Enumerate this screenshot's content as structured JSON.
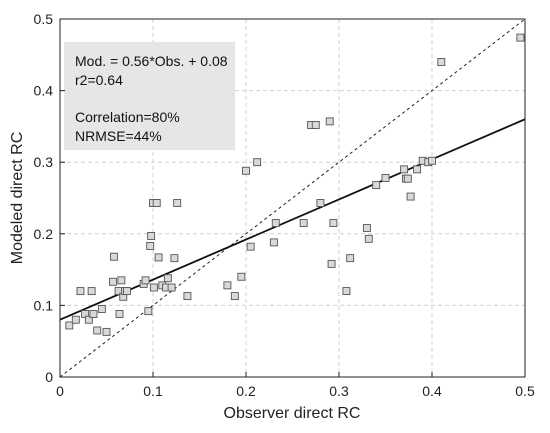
{
  "chart_data": {
    "type": "scatter",
    "title": "",
    "xlabel": "Observer direct RC",
    "ylabel": "Modeled direct RC",
    "xlim": [
      0,
      0.5
    ],
    "ylim": [
      0,
      0.5
    ],
    "xticks": [
      "0",
      "0.1",
      "0.2",
      "0.3",
      "0.4",
      "0.5"
    ],
    "yticks": [
      "0",
      "0.1",
      "0.2",
      "0.3",
      "0.4",
      "0.5"
    ],
    "grid": true,
    "annotation": {
      "line1": "Mod. = 0.56*Obs. + 0.08",
      "line2": "r2=0.64",
      "line3": "Correlation=80%",
      "line4": "NRMSE=44%"
    },
    "fit_line": {
      "slope": 0.56,
      "intercept": 0.08
    },
    "identity_line": {
      "style": "dashed"
    },
    "marker_fill": "#d9d9d9",
    "marker_stroke": "#555555",
    "annotation_box_fill": "#e6e6e6",
    "points": [
      [
        0.01,
        0.072
      ],
      [
        0.017,
        0.08
      ],
      [
        0.022,
        0.12
      ],
      [
        0.027,
        0.088
      ],
      [
        0.031,
        0.08
      ],
      [
        0.034,
        0.12
      ],
      [
        0.036,
        0.088
      ],
      [
        0.04,
        0.065
      ],
      [
        0.045,
        0.095
      ],
      [
        0.05,
        0.063
      ],
      [
        0.057,
        0.133
      ],
      [
        0.058,
        0.168
      ],
      [
        0.063,
        0.12
      ],
      [
        0.064,
        0.088
      ],
      [
        0.066,
        0.135
      ],
      [
        0.068,
        0.112
      ],
      [
        0.07,
        0.12
      ],
      [
        0.072,
        0.12
      ],
      [
        0.09,
        0.13
      ],
      [
        0.092,
        0.135
      ],
      [
        0.095,
        0.092
      ],
      [
        0.097,
        0.183
      ],
      [
        0.098,
        0.197
      ],
      [
        0.1,
        0.243
      ],
      [
        0.101,
        0.125
      ],
      [
        0.104,
        0.243
      ],
      [
        0.106,
        0.167
      ],
      [
        0.11,
        0.128
      ],
      [
        0.114,
        0.125
      ],
      [
        0.116,
        0.138
      ],
      [
        0.12,
        0.125
      ],
      [
        0.123,
        0.166
      ],
      [
        0.126,
        0.243
      ],
      [
        0.137,
        0.113
      ],
      [
        0.18,
        0.128
      ],
      [
        0.188,
        0.113
      ],
      [
        0.195,
        0.14
      ],
      [
        0.2,
        0.288
      ],
      [
        0.205,
        0.182
      ],
      [
        0.212,
        0.3
      ],
      [
        0.23,
        0.188
      ],
      [
        0.232,
        0.215
      ],
      [
        0.262,
        0.215
      ],
      [
        0.27,
        0.352
      ],
      [
        0.275,
        0.352
      ],
      [
        0.28,
        0.243
      ],
      [
        0.29,
        0.357
      ],
      [
        0.292,
        0.158
      ],
      [
        0.294,
        0.215
      ],
      [
        0.308,
        0.12
      ],
      [
        0.312,
        0.166
      ],
      [
        0.33,
        0.208
      ],
      [
        0.332,
        0.193
      ],
      [
        0.34,
        0.268
      ],
      [
        0.35,
        0.278
      ],
      [
        0.37,
        0.29
      ],
      [
        0.372,
        0.277
      ],
      [
        0.374,
        0.277
      ],
      [
        0.377,
        0.252
      ],
      [
        0.384,
        0.29
      ],
      [
        0.39,
        0.302
      ],
      [
        0.396,
        0.3
      ],
      [
        0.4,
        0.302
      ],
      [
        0.41,
        0.44
      ],
      [
        0.495,
        0.474
      ]
    ]
  }
}
